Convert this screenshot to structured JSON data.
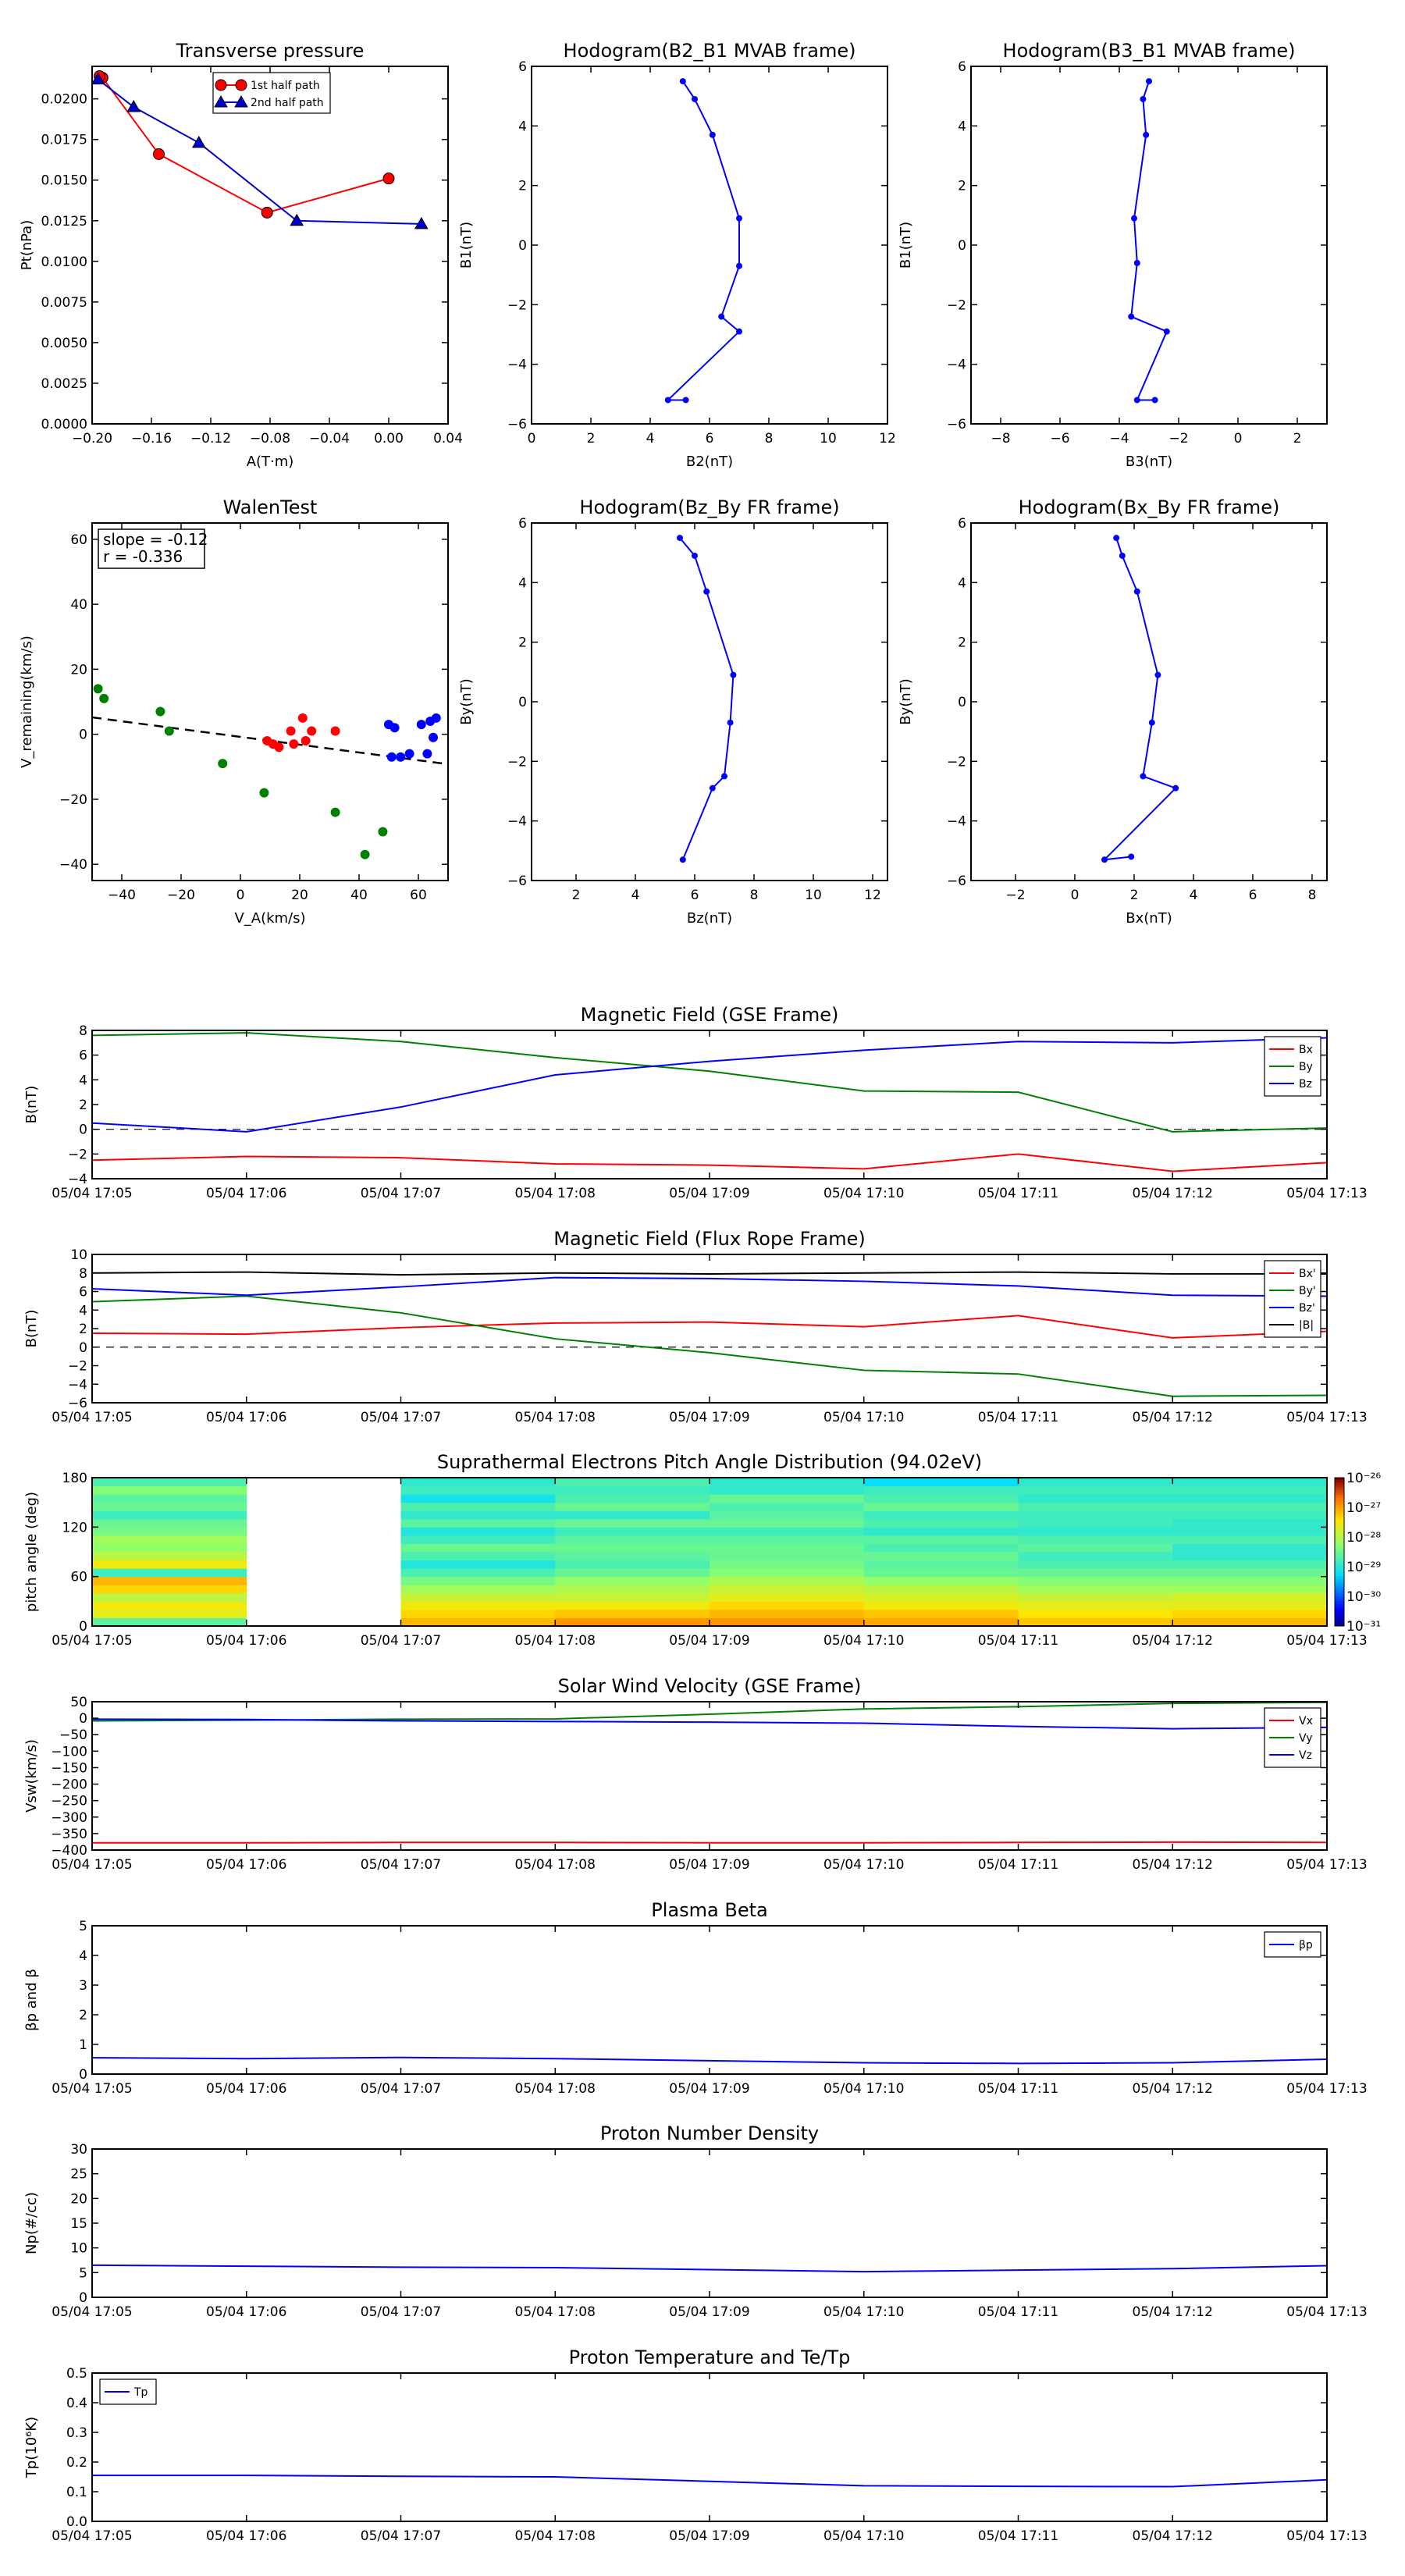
{
  "time_ticks": [
    "05/04 17:05",
    "05/04 17:06",
    "05/04 17:07",
    "05/04 17:08",
    "05/04 17:09",
    "05/04 17:10",
    "05/04 17:11",
    "05/04 17:12",
    "05/04 17:13"
  ],
  "chart_data": [
    {
      "id": "pt",
      "type": "line",
      "title": "Transverse pressure",
      "xlabel": "A(T·m)",
      "ylabel": "Pt(nPa)",
      "xlim": [
        -0.2,
        0.04
      ],
      "ylim": [
        0,
        0.022
      ],
      "xticks": [
        "−0.20",
        "−0.16",
        "−0.12",
        "−0.08",
        "−0.04",
        "0.00",
        "0.04"
      ],
      "xtick_values": [
        -0.2,
        -0.16,
        -0.12,
        -0.08,
        -0.04,
        0,
        0.04
      ],
      "yticks": [
        "0.0000",
        "0.0025",
        "0.0050",
        "0.0075",
        "0.0100",
        "0.0125",
        "0.0150",
        "0.0175",
        "0.0200"
      ],
      "ytick_values": [
        0,
        0.0025,
        0.005,
        0.0075,
        0.01,
        0.0125,
        0.015,
        0.0175,
        0.02
      ],
      "legend_position": "top-center",
      "series": [
        {
          "name": "1st half path",
          "color": "#ff0000",
          "marker": "circle",
          "x": [
            0.0,
            -0.082,
            -0.155,
            -0.193,
            -0.195
          ],
          "y": [
            0.0151,
            0.013,
            0.0166,
            0.0213,
            0.0214
          ]
        },
        {
          "name": "2nd half path",
          "color": "#0000cc",
          "marker": "triangle",
          "x": [
            -0.196,
            -0.172,
            -0.128,
            -0.062,
            0.022
          ],
          "y": [
            0.0212,
            0.0195,
            0.0173,
            0.0125,
            0.0123
          ]
        }
      ]
    },
    {
      "id": "hodo1",
      "type": "line",
      "title": "Hodogram(B2_B1 MVAB frame)",
      "xlabel": "B2(nT)",
      "ylabel": "B1(nT)",
      "xlim": [
        0,
        12
      ],
      "ylim": [
        -6,
        6
      ],
      "xticks": [
        "0",
        "2",
        "4",
        "6",
        "8",
        "10",
        "12"
      ],
      "xtick_values": [
        0,
        2,
        4,
        6,
        8,
        10,
        12
      ],
      "yticks": [
        "−6",
        "−4",
        "−2",
        "0",
        "2",
        "4",
        "6"
      ],
      "ytick_values": [
        -6,
        -4,
        -2,
        0,
        2,
        4,
        6
      ],
      "series": [
        {
          "color": "#0000ff",
          "x": [
            5.1,
            5.5,
            6.1,
            7.0,
            7.0,
            6.4,
            7.0,
            4.6,
            5.2
          ],
          "y": [
            5.5,
            4.9,
            3.7,
            0.9,
            -0.7,
            -2.4,
            -2.9,
            -5.2,
            -5.2
          ]
        }
      ]
    },
    {
      "id": "hodo2",
      "type": "line",
      "title": "Hodogram(B3_B1 MVAB frame)",
      "xlabel": "B3(nT)",
      "ylabel": "B1(nT)",
      "xlim": [
        -9,
        3
      ],
      "ylim": [
        -6,
        6
      ],
      "xticks": [
        "−8",
        "−6",
        "−4",
        "−2",
        "0",
        "2"
      ],
      "xtick_values": [
        -8,
        -6,
        -4,
        -2,
        0,
        2
      ],
      "yticks": [
        "−6",
        "−4",
        "−2",
        "0",
        "2",
        "4",
        "6"
      ],
      "ytick_values": [
        -6,
        -4,
        -2,
        0,
        2,
        4,
        6
      ],
      "series": [
        {
          "color": "#0000ff",
          "x": [
            -3.0,
            -3.2,
            -3.1,
            -3.5,
            -3.4,
            -3.6,
            -2.4,
            -3.4,
            -2.8
          ],
          "y": [
            5.5,
            4.9,
            3.7,
            0.9,
            -0.6,
            -2.4,
            -2.9,
            -5.2,
            -5.2
          ]
        }
      ]
    },
    {
      "id": "walen",
      "type": "scatter",
      "title": "WalenTest",
      "xlabel": "V_A(km/s)",
      "ylabel": "V_remaining(km/s)",
      "xlim": [
        -50,
        70
      ],
      "ylim": [
        -45,
        65
      ],
      "xticks": [
        "−40",
        "−20",
        "0",
        "20",
        "40",
        "60"
      ],
      "xtick_values": [
        -40,
        -20,
        0,
        20,
        40,
        60
      ],
      "yticks": [
        "−40",
        "−20",
        "0",
        "20",
        "40",
        "60"
      ],
      "ytick_values": [
        -40,
        -20,
        0,
        20,
        40,
        60
      ],
      "annotation": [
        "slope = -0.12",
        "r = -0.336"
      ],
      "fit_line": {
        "slope": -0.12,
        "intercept": -0.8
      },
      "series": [
        {
          "color": "#008000",
          "x": [
            -48,
            -46,
            -27,
            -24,
            -6,
            8,
            32,
            48,
            42
          ],
          "y": [
            14,
            11,
            7,
            1,
            -9,
            -18,
            -24,
            -30,
            -37
          ]
        },
        {
          "color": "#ff0000",
          "x": [
            9,
            11,
            13,
            17,
            18,
            21,
            22,
            24,
            32
          ],
          "y": [
            -2,
            -3,
            -4,
            1,
            -3,
            5,
            -2,
            1,
            1
          ]
        },
        {
          "color": "#0000ff",
          "x": [
            50,
            52,
            51,
            54,
            57,
            61,
            63,
            64,
            65,
            66
          ],
          "y": [
            3,
            2,
            -7,
            -7,
            -6,
            3,
            -6,
            4,
            -1,
            5
          ]
        }
      ]
    },
    {
      "id": "hodo3",
      "type": "line",
      "title": "Hodogram(Bz_By FR frame)",
      "xlabel": "Bz(nT)",
      "ylabel": "By(nT)",
      "xlim": [
        0.5,
        12.5
      ],
      "ylim": [
        -6,
        6
      ],
      "xticks": [
        "2",
        "4",
        "6",
        "8",
        "10",
        "12"
      ],
      "xtick_values": [
        2,
        4,
        6,
        8,
        10,
        12
      ],
      "yticks": [
        "−6",
        "−4",
        "−2",
        "0",
        "2",
        "4",
        "6"
      ],
      "ytick_values": [
        -6,
        -4,
        -2,
        0,
        2,
        4,
        6
      ],
      "series": [
        {
          "color": "#0000ff",
          "x": [
            5.5,
            6.0,
            6.4,
            7.3,
            7.2,
            7.0,
            6.6,
            5.6
          ],
          "y": [
            5.5,
            4.9,
            3.7,
            0.9,
            -0.7,
            -2.5,
            -2.9,
            -5.3
          ]
        }
      ]
    },
    {
      "id": "hodo4",
      "type": "line",
      "title": "Hodogram(Bx_By FR frame)",
      "xlabel": "Bx(nT)",
      "ylabel": "By(nT)",
      "xlim": [
        -3.5,
        8.5
      ],
      "ylim": [
        -6,
        6
      ],
      "xticks": [
        "−2",
        "0",
        "2",
        "4",
        "6",
        "8"
      ],
      "xtick_values": [
        -2,
        0,
        2,
        4,
        6,
        8
      ],
      "yticks": [
        "−6",
        "−4",
        "−2",
        "0",
        "2",
        "4",
        "6"
      ],
      "ytick_values": [
        -6,
        -4,
        -2,
        0,
        2,
        4,
        6
      ],
      "series": [
        {
          "color": "#0000ff",
          "x": [
            1.4,
            1.6,
            2.1,
            2.8,
            2.6,
            2.3,
            3.4,
            1.0,
            1.9
          ],
          "y": [
            5.5,
            4.9,
            3.7,
            0.9,
            -0.7,
            -2.5,
            -2.9,
            -5.3,
            -5.2
          ]
        }
      ]
    },
    {
      "id": "bgse",
      "type": "line",
      "title": "Magnetic Field (GSE Frame)",
      "ylabel": "B(nT)",
      "ylim": [
        -4,
        8
      ],
      "yticks": [
        "−4",
        "−2",
        "0",
        "2",
        "4",
        "6",
        "8"
      ],
      "ytick_values": [
        -4,
        -2,
        0,
        2,
        4,
        6,
        8
      ],
      "zero_line": true,
      "legend_position": "top-right",
      "series": [
        {
          "name": "Bx",
          "color": "#ff0000",
          "values": [
            -2.5,
            -2.2,
            -2.3,
            -2.8,
            -2.9,
            -3.2,
            -2.0,
            -3.4,
            -2.7
          ]
        },
        {
          "name": "By",
          "color": "#008000",
          "values": [
            7.6,
            7.8,
            7.1,
            5.8,
            4.7,
            3.1,
            3.0,
            -0.2,
            0.1
          ]
        },
        {
          "name": "Bz",
          "color": "#0000ff",
          "values": [
            0.5,
            -0.2,
            1.8,
            4.4,
            5.5,
            6.4,
            7.1,
            7.0,
            7.4
          ]
        }
      ]
    },
    {
      "id": "bfr",
      "type": "line",
      "title": "Magnetic Field (Flux Rope Frame)",
      "ylabel": "B(nT)",
      "ylim": [
        -6,
        10
      ],
      "yticks": [
        "−6",
        "−4",
        "−2",
        "0",
        "2",
        "4",
        "6",
        "8",
        "10"
      ],
      "ytick_values": [
        -6,
        -4,
        -2,
        0,
        2,
        4,
        6,
        8,
        10
      ],
      "zero_line": true,
      "legend_position": "top-right",
      "series": [
        {
          "name": "Bx'",
          "color": "#ff0000",
          "values": [
            1.5,
            1.4,
            2.1,
            2.6,
            2.7,
            2.2,
            3.4,
            1.0,
            1.7
          ]
        },
        {
          "name": "By'",
          "color": "#008000",
          "values": [
            4.9,
            5.5,
            3.7,
            0.9,
            -0.6,
            -2.5,
            -2.9,
            -5.3,
            -5.2
          ]
        },
        {
          "name": "Bz'",
          "color": "#0000ff",
          "values": [
            6.3,
            5.6,
            6.5,
            7.5,
            7.4,
            7.1,
            6.6,
            5.6,
            5.5
          ]
        },
        {
          "name": "|B|",
          "color": "#000000",
          "values": [
            8.0,
            8.1,
            7.8,
            8.0,
            7.9,
            8.0,
            8.1,
            7.9,
            7.9
          ]
        }
      ]
    },
    {
      "id": "pad",
      "type": "heatmap",
      "title": "Suprathermal Electrons Pitch Angle Distribution (94.02eV)",
      "ylabel": "pitch angle (deg)",
      "ylim": [
        0,
        180
      ],
      "yticks": [
        "0",
        "60",
        "120",
        "180"
      ],
      "ytick_values": [
        0,
        60,
        120,
        180
      ],
      "colorbar_ticks": [
        "10⁻²⁶",
        "10⁻²⁷",
        "10⁻²⁸",
        "10⁻²⁹",
        "10⁻³⁰",
        "10⁻³¹"
      ],
      "colorbar_range_log": [
        -31,
        -26
      ],
      "columns_present": [
        true,
        false,
        true,
        true,
        true,
        true,
        true,
        true
      ],
      "bins": 18,
      "values_log10": [
        [
          -28.6,
          -27.6,
          -27.5,
          -27.9,
          -27.3,
          -27.1,
          -28.8,
          -27.5,
          -27.9,
          -28.2,
          -28.1,
          -28.4,
          -28.5,
          -28.8,
          -28.5,
          -28.6,
          -28.3,
          -28.7
        ],
        null,
        [
          -27.1,
          -27.3,
          -27.5,
          -27.8,
          -28.1,
          -28.4,
          -28.7,
          -29.0,
          -28.7,
          -28.5,
          -28.8,
          -29.0,
          -28.6,
          -28.9,
          -28.7,
          -29.1,
          -28.8,
          -28.9
        ],
        [
          -26.9,
          -27.2,
          -27.5,
          -27.8,
          -28.0,
          -28.2,
          -28.5,
          -28.7,
          -28.6,
          -28.5,
          -28.6,
          -28.8,
          -28.5,
          -28.9,
          -28.5,
          -28.7,
          -28.8,
          -28.7
        ],
        [
          -26.9,
          -27.1,
          -27.3,
          -27.6,
          -27.8,
          -28.0,
          -28.3,
          -28.4,
          -28.5,
          -28.5,
          -28.6,
          -28.8,
          -28.5,
          -28.6,
          -28.7,
          -28.5,
          -28.9,
          -28.9
        ],
        [
          -27.0,
          -27.2,
          -27.5,
          -27.7,
          -27.9,
          -28.2,
          -28.5,
          -28.6,
          -28.5,
          -28.7,
          -28.6,
          -28.9,
          -28.7,
          -28.8,
          -28.5,
          -28.7,
          -28.8,
          -29.2
        ],
        [
          -27.2,
          -27.4,
          -27.6,
          -27.8,
          -28.1,
          -28.3,
          -28.5,
          -28.7,
          -28.8,
          -28.6,
          -28.7,
          -28.9,
          -28.8,
          -28.8,
          -28.7,
          -28.9,
          -28.8,
          -28.9
        ],
        [
          -27.1,
          -27.3,
          -27.6,
          -27.7,
          -28.1,
          -28.3,
          -28.5,
          -28.7,
          -28.9,
          -28.9,
          -28.7,
          -28.9,
          -28.9,
          -28.8,
          -28.7,
          -28.9,
          -28.8,
          -28.9
        ]
      ]
    },
    {
      "id": "vsw",
      "type": "line",
      "title": "Solar Wind Velocity (GSE Frame)",
      "ylabel": "Vsw(km/s)",
      "ylim": [
        -400,
        50
      ],
      "yticks": [
        "−400",
        "−350",
        "−300",
        "−250",
        "−200",
        "−150",
        "−100",
        "−50",
        "0",
        "50"
      ],
      "ytick_values": [
        -400,
        -350,
        -300,
        -250,
        -200,
        -150,
        -100,
        -50,
        0,
        50
      ],
      "legend_position": "top-right",
      "series": [
        {
          "name": "Vx",
          "color": "#ff0000",
          "values": [
            -378,
            -378,
            -377,
            -377,
            -378,
            -378,
            -377,
            -376,
            -377
          ]
        },
        {
          "name": "Vy",
          "color": "#008000",
          "values": [
            -8,
            -6,
            -3,
            -2,
            12,
            28,
            35,
            45,
            48
          ]
        },
        {
          "name": "Vz",
          "color": "#0000ff",
          "values": [
            -3,
            -4,
            -8,
            -10,
            -12,
            -15,
            -25,
            -32,
            -28
          ]
        }
      ]
    },
    {
      "id": "beta",
      "type": "line",
      "title": "Plasma Beta",
      "ylabel": "βp and β",
      "ylim": [
        0,
        5
      ],
      "yticks": [
        "0",
        "1",
        "2",
        "3",
        "4",
        "5"
      ],
      "ytick_values": [
        0,
        1,
        2,
        3,
        4,
        5
      ],
      "legend_position": "top-right",
      "series": [
        {
          "name": "βp",
          "color": "#0000ff",
          "values": [
            0.55,
            0.52,
            0.56,
            0.52,
            0.45,
            0.38,
            0.36,
            0.38,
            0.5
          ]
        }
      ]
    },
    {
      "id": "np",
      "type": "line",
      "title": "Proton Number Density",
      "ylabel": "Np(#/cc)",
      "ylim": [
        0,
        30
      ],
      "yticks": [
        "0",
        "5",
        "10",
        "15",
        "20",
        "25",
        "30"
      ],
      "ytick_values": [
        0,
        5,
        10,
        15,
        20,
        25,
        30
      ],
      "series": [
        {
          "color": "#0000ff",
          "values": [
            6.5,
            6.3,
            6.1,
            6.0,
            5.6,
            5.2,
            5.5,
            5.8,
            6.4
          ]
        }
      ]
    },
    {
      "id": "tp",
      "type": "line",
      "title": "Proton Temperature and Te/Tp",
      "ylabel": "Tp(10⁶K)",
      "ylim": [
        0,
        0.5
      ],
      "yticks": [
        "0.0",
        "0.1",
        "0.2",
        "0.3",
        "0.4",
        "0.5"
      ],
      "ytick_values": [
        0,
        0.1,
        0.2,
        0.3,
        0.4,
        0.5
      ],
      "legend_position": "top-left",
      "series": [
        {
          "name": "Tp",
          "color": "#0000ff",
          "values": [
            0.155,
            0.155,
            0.152,
            0.15,
            0.135,
            0.12,
            0.118,
            0.117,
            0.14
          ]
        }
      ]
    }
  ]
}
